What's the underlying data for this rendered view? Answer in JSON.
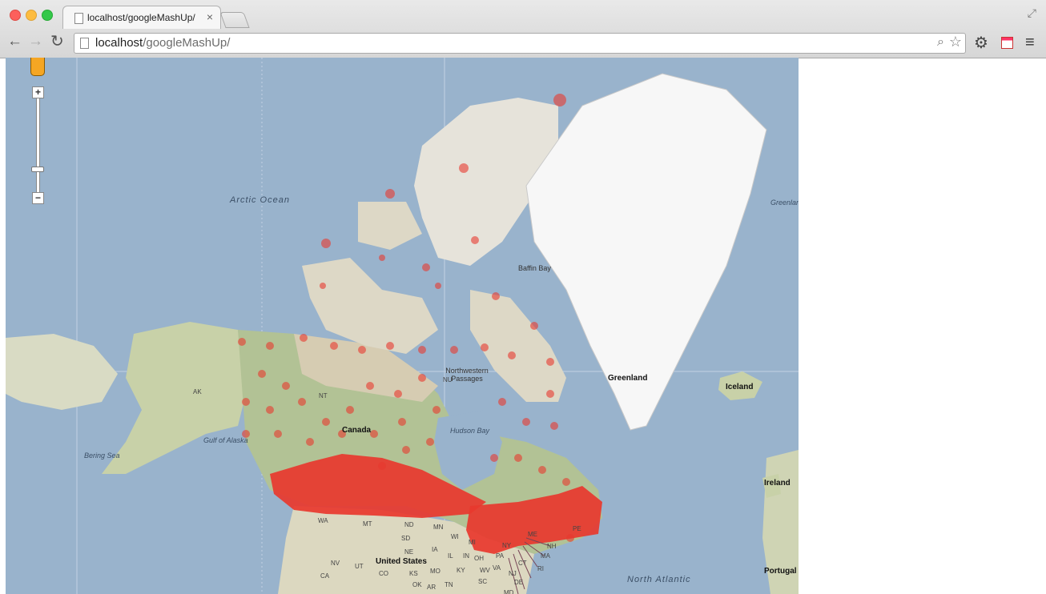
{
  "browser": {
    "tab_title": "localhost/googleMashUp/",
    "tab_close": "×",
    "url_host": "localhost",
    "url_path": "/googleMashUp/",
    "back_glyph": "←",
    "forward_glyph": "→",
    "reload_glyph": "↻",
    "zoom_glyph": "⌕",
    "star_glyph": "☆",
    "settings_glyph": "⚙",
    "menu_glyph": "≡",
    "fullscreen_glyph": "⤢"
  },
  "map": {
    "colors": {
      "water": "#99b3cc",
      "land": "#e3dccb",
      "vegetation": "#a9bd8c",
      "ice": "#ffffff",
      "marker": "#e8382e",
      "grid": "#c9d6e6"
    },
    "controls": {
      "zoom_in": "+",
      "zoom_out": "−"
    },
    "labels": {
      "arctic_ocean": "Arctic Ocean",
      "baffin_bay": "Baffin Bay",
      "greenland": "Greenland",
      "greenland_sea": "Greenland Sea",
      "iceland": "Iceland",
      "ireland": "Ireland",
      "portugal": "Portugal",
      "northwestern_passages": "Northwestern Passages",
      "nu": "NU",
      "nt": "NT",
      "ak": "AK",
      "canada": "Canada",
      "hudson_bay": "Hudson Bay",
      "gulf_of_alaska": "Gulf of Alaska",
      "bering_sea": "Bering Sea",
      "united_states": "United States",
      "north_atlantic": "North Atlantic",
      "states": [
        "WA",
        "MT",
        "ND",
        "MN",
        "SD",
        "WI",
        "MI",
        "NE",
        "IA",
        "IL",
        "IN",
        "OH",
        "PA",
        "NY",
        "NV",
        "UT",
        "CO",
        "KS",
        "MO",
        "KY",
        "WV",
        "VA",
        "CA",
        "OK",
        "ME",
        "NH",
        "MA",
        "CT",
        "RI",
        "NJ",
        "DE",
        "MD",
        "PE",
        "TN",
        "SC",
        "AR"
      ]
    },
    "marker_groups": [
      "Western Canada dense cluster",
      "Eastern Canada dense cluster",
      "Northern Canada scattered sightings",
      "Arctic Archipelago scattered sightings"
    ]
  }
}
